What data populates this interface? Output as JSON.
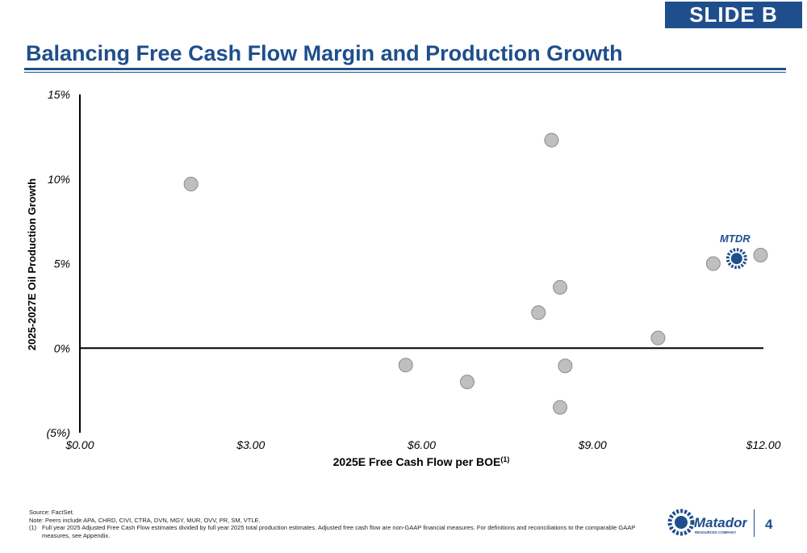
{
  "slide_tag": "SLIDE B",
  "title": "Balancing Free Cash Flow Margin and Production Growth",
  "colors": {
    "brand": "#1f4e8c",
    "peer_point": "#bfbfbf",
    "peer_stroke": "#8c8c8c"
  },
  "chart_data": {
    "type": "scatter",
    "title": "",
    "xlabel": "2025E Free Cash Flow per BOE",
    "xlabel_superscript": "(1)",
    "ylabel": "2025-2027E Oil Production Growth",
    "xlim": [
      0,
      12
    ],
    "ylim": [
      -5,
      15
    ],
    "x_ticks": [
      0,
      3,
      6,
      9,
      12
    ],
    "x_tick_labels": [
      "$0.00",
      "$3.00",
      "$6.00",
      "$9.00",
      "$12.00"
    ],
    "y_ticks": [
      -5,
      0,
      5,
      10,
      15
    ],
    "y_tick_labels": [
      "(5%)",
      "0%",
      "5%",
      "10%",
      "15%"
    ],
    "series": [
      {
        "name": "Peers",
        "points": [
          {
            "x": 1.95,
            "y": 9.7
          },
          {
            "x": 8.28,
            "y": 12.3
          },
          {
            "x": 8.43,
            "y": 3.6
          },
          {
            "x": 8.05,
            "y": 2.1
          },
          {
            "x": 10.15,
            "y": 0.6
          },
          {
            "x": 11.12,
            "y": 5.0
          },
          {
            "x": 11.95,
            "y": 5.5
          },
          {
            "x": 5.72,
            "y": -1.0
          },
          {
            "x": 6.8,
            "y": -2.0
          },
          {
            "x": 8.52,
            "y": -1.05
          },
          {
            "x": 8.43,
            "y": -3.5
          }
        ]
      },
      {
        "name": "MTDR",
        "label": "MTDR",
        "points": [
          {
            "x": 11.53,
            "y": 5.3
          }
        ]
      }
    ]
  },
  "footer": {
    "source": "Source: FactSet.",
    "note": "Note: Peers include APA, CHRD, CIVI, CTRA, DVN, MGY, MUR, OVV, PR, SM, VTLE.",
    "footnote_number": "(1)",
    "footnote_text": "Full year 2025 Adjusted Free Cash Flow estimates divided by full year 2025 total production estimates. Adjusted free cash flow are non-GAAP financial measures. For definitions and reconciliations to the comparable GAAP measures, see Appendix."
  },
  "logo": {
    "name": "Matador",
    "subtitle": "RESOURCES COMPANY"
  },
  "page_number": "4"
}
